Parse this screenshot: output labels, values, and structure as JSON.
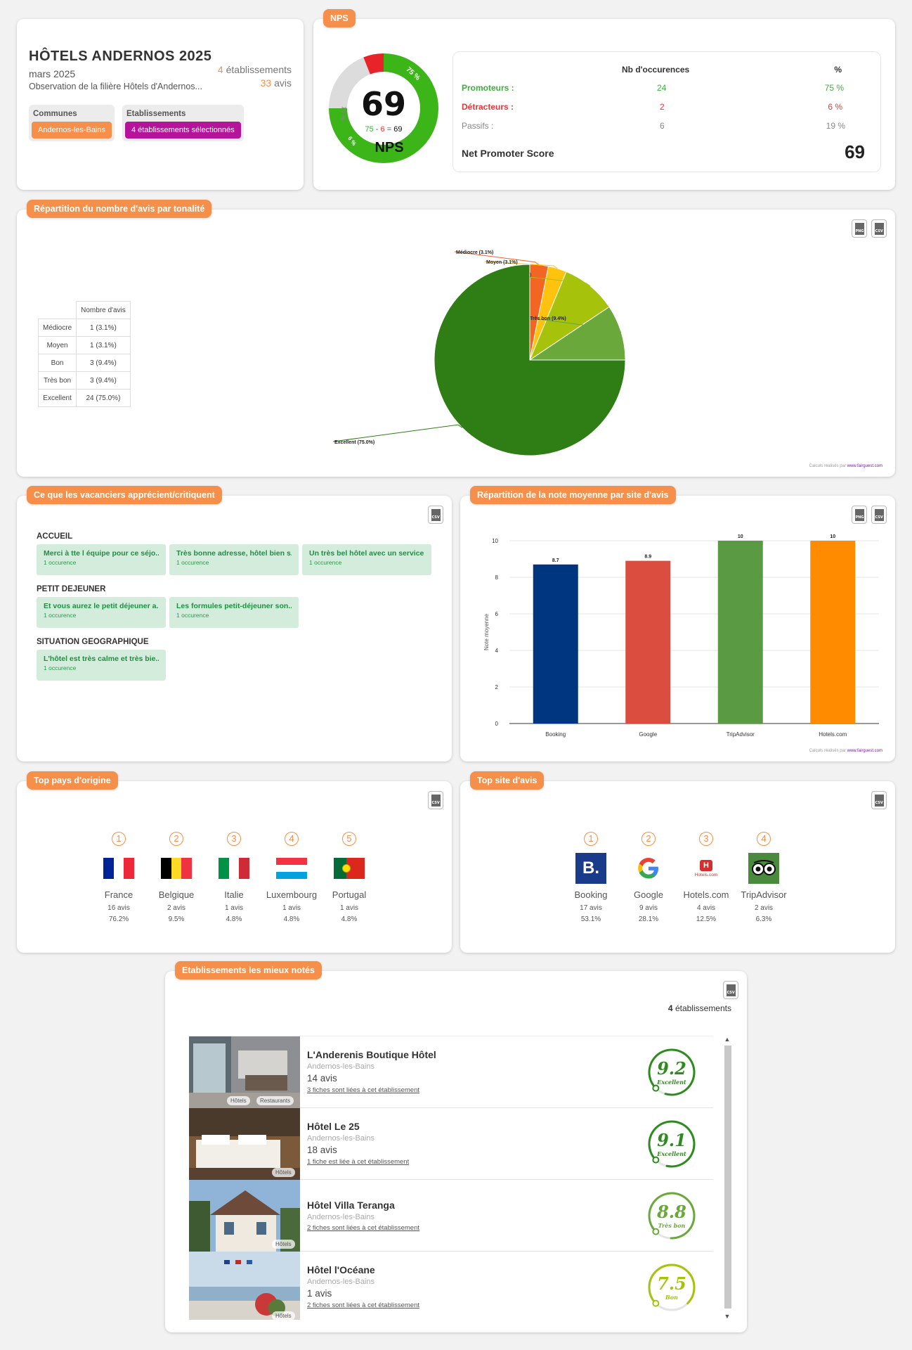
{
  "header": {
    "title": "HÔTELS ANDERNOS 2025",
    "date": "mars 2025",
    "description": "Observation de la filière Hôtels d'Andernos...",
    "etab_count": "4",
    "etab_label": "établissements",
    "avis_count": "33",
    "avis_label": "avis",
    "filters": [
      {
        "label": "Communes",
        "value": "Andernos-les-Bains",
        "color": "#f58f4a"
      },
      {
        "label": "Etablissements",
        "value": "4 établissements sélectionnés",
        "color": "#b5139a"
      }
    ]
  },
  "nps": {
    "tag": "NPS",
    "score": "69",
    "formula_prom": "75",
    "formula_minus": "-",
    "formula_det": "6",
    "formula_eq": "=",
    "formula_res": "69",
    "label": "NPS",
    "arc_prom": "75 %",
    "arc_pass": "19 %",
    "arc_det": "6 %",
    "col_occ": "Nb d'occurences",
    "col_pct": "%",
    "rows": [
      {
        "label": "Promoteurs :",
        "occ": "24",
        "pct": "75 %",
        "color": "#3cae3c"
      },
      {
        "label": "Détracteurs :",
        "occ": "2",
        "pct": "6 %",
        "color": "#e03a3a"
      },
      {
        "label": "Passifs :",
        "occ": "6",
        "pct": "19 %",
        "color": "#888888"
      }
    ],
    "total_label": "Net Promoter Score",
    "total_value": "69",
    "gauge_values": {
      "promoters": 75,
      "passives": 19,
      "detractors": 6
    },
    "colors": {
      "promoters": "#3cb518",
      "passives": "#dcdcdc",
      "detractors": "#e8232a"
    }
  },
  "tonalite": {
    "tag": "Répartition du nombre d'avis par tonalité",
    "table_header": "Nombre d'avis",
    "rows": [
      {
        "label": "Médiocre",
        "value": "1 (3.1%)"
      },
      {
        "label": "Moyen",
        "value": "1 (3.1%)"
      },
      {
        "label": "Bon",
        "value": "3 (9.4%)"
      },
      {
        "label": "Très bon",
        "value": "3 (9.4%)"
      },
      {
        "label": "Excellent",
        "value": "24 (75.0%)"
      }
    ],
    "credit_text": "Calculs réalisés par",
    "credit_link": "www.fairguest.com"
  },
  "chart_data": [
    {
      "type": "pie",
      "title": "",
      "categories": [
        "Médiocre",
        "Moyen",
        "Bon",
        "Très bon",
        "Excellent"
      ],
      "values": [
        1,
        1,
        3,
        3,
        24
      ],
      "labels": [
        "Médiocre (3.1%)",
        "Moyen (3.1%)",
        "Bon (9.4%)",
        "Très bon (9.4%)",
        "Excellent (75.0%)"
      ],
      "colors": [
        "#f26522",
        "#ffc20e",
        "#a6c20b",
        "#6aa83c",
        "#2f7d15"
      ]
    },
    {
      "type": "bar",
      "title": "",
      "categories": [
        "Booking",
        "Google",
        "TripAdvisor",
        "Hotels.com"
      ],
      "series": [
        {
          "name": "HOTELS ANDERNOS 2025",
          "values": [
            8.7,
            8.9,
            10,
            10
          ]
        }
      ],
      "value_labels": [
        "8.7",
        "8.9",
        "10",
        "10"
      ],
      "colors": [
        "#003580",
        "#db4d3f",
        "#5a9a42",
        "#ff8c00"
      ],
      "xlabel": "",
      "ylabel": "Note moyenne",
      "ylim": [
        0,
        10
      ],
      "yticks": [
        "0",
        "2",
        "4",
        "6",
        "8",
        "10"
      ],
      "grid": true,
      "legend": "bottom"
    }
  ],
  "apprecie": {
    "tag": "Ce que les vacanciers apprécient/critiquent",
    "groups": [
      {
        "title": "ACCUEIL",
        "items": [
          {
            "text": "Merci à tte l équipe pour ce séjo...",
            "sub": "1 occurence"
          },
          {
            "text": "Très bonne adresse, hôtel bien s...",
            "sub": "1 occurence"
          },
          {
            "text": "Un très bel hôtel avec un service...",
            "sub": "1 occurence"
          }
        ]
      },
      {
        "title": "PETIT DEJEUNER",
        "items": [
          {
            "text": "Et vous aurez le petit déjeuner a...",
            "sub": "1 occurence"
          },
          {
            "text": "Les formules petit-déjeuner son...",
            "sub": "1 occurence"
          }
        ]
      },
      {
        "title": "SITUATION GEOGRAPHIQUE",
        "items": [
          {
            "text": "L'hôtel est très calme et très bie...",
            "sub": "1 occurence"
          }
        ]
      }
    ]
  },
  "note_moyenne": {
    "tag": "Répartition de la note moyenne par site d'avis",
    "credit_text": "Calculs réalisés par",
    "credit_link": "www.fairguest.com"
  },
  "pays": {
    "tag": "Top pays d'origine",
    "items": [
      {
        "rank": "1",
        "name": "France",
        "avis": "16 avis",
        "pct": "76.2%",
        "flag": "france-flag-icon"
      },
      {
        "rank": "2",
        "name": "Belgique",
        "avis": "2 avis",
        "pct": "9.5%",
        "flag": "belgium-flag-icon"
      },
      {
        "rank": "3",
        "name": "Italie",
        "avis": "1 avis",
        "pct": "4.8%",
        "flag": "italy-flag-icon"
      },
      {
        "rank": "4",
        "name": "Luxembourg",
        "avis": "1 avis",
        "pct": "4.8%",
        "flag": "luxembourg-flag-icon"
      },
      {
        "rank": "5",
        "name": "Portugal",
        "avis": "1 avis",
        "pct": "4.8%",
        "flag": "portugal-flag-icon"
      }
    ]
  },
  "sites": {
    "tag": "Top site d'avis",
    "items": [
      {
        "rank": "1",
        "name": "Booking",
        "avis": "17 avis",
        "pct": "53.1%",
        "logo": "booking-logo-icon"
      },
      {
        "rank": "2",
        "name": "Google",
        "avis": "9 avis",
        "pct": "28.1%",
        "logo": "google-logo-icon"
      },
      {
        "rank": "3",
        "name": "Hotels.com",
        "avis": "4 avis",
        "pct": "12.5%",
        "logo": "hotelscom-logo-icon"
      },
      {
        "rank": "4",
        "name": "TripAdvisor",
        "avis": "2 avis",
        "pct": "6.3%",
        "logo": "tripadvisor-logo-icon"
      }
    ],
    "booking_letter": "B.",
    "google_letter": "G",
    "hotelscom_text": "Hotels.com"
  },
  "hotels": {
    "tag": "Etablissements les mieux notés",
    "count": "4",
    "count_label": "établissements",
    "items": [
      {
        "name": "L'Anderenis Boutique Hôtel",
        "city": "Andernos-les-Bains",
        "avis": "14 avis",
        "link": "3 fiches sont liées à cet établissement",
        "score": "9.2",
        "mention": "Excellent",
        "score_value": 9.2,
        "color": "#2e8b1e",
        "badges": [
          "Hôtels",
          "Restaurants"
        ]
      },
      {
        "name": "Hôtel Le 25",
        "city": "Andernos-les-Bains",
        "avis": "18 avis",
        "link": "1 fiche est liée à cet établissement",
        "score": "9.1",
        "mention": "Excellent",
        "score_value": 9.1,
        "color": "#2e8b1e",
        "badges": [
          "Hôtels"
        ]
      },
      {
        "name": "Hôtel Villa Teranga",
        "city": "Andernos-les-Bains",
        "avis": "",
        "link": "2 fiches sont liées à cet établissement",
        "score": "8.8",
        "mention": "Très bon",
        "score_value": 8.8,
        "color": "#6aa83c",
        "badges": [
          "Hôtels"
        ]
      },
      {
        "name": "Hôtel l'Océane",
        "city": "Andernos-les-Bains",
        "avis": "1 avis",
        "link": "2 fiches sont liées à cet établissement",
        "score": "7.5",
        "mention": "Bon",
        "score_value": 7.5,
        "color": "#a6c20b",
        "badges": [
          "Hôtels"
        ]
      }
    ]
  },
  "export": {
    "png": "PNG",
    "csv": "CSV"
  }
}
